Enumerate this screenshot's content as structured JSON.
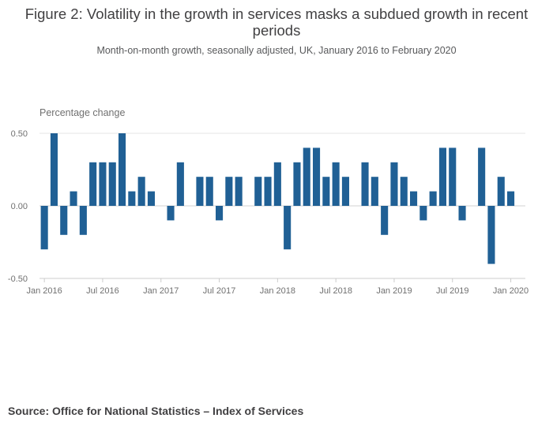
{
  "title": "Figure 2: Volatility in the growth in services masks a subdued growth in recent periods",
  "subtitle": "Month-on-month growth, seasonally adjusted, UK, January 2016 to February 2020",
  "source": "Source: Office for National Statistics – Index of Services",
  "colors": {
    "bar": "#206095",
    "grid": "#e6e6e6",
    "axis": "#cccccc"
  },
  "chart_data": {
    "type": "bar",
    "title": "Figure 2: Volatility in the growth in services masks a subdued growth in recent periods",
    "ylabel": "Percentage change",
    "xlabel": "",
    "ylim": [
      -0.5,
      0.5
    ],
    "yticks": [
      "0.50",
      "0.00",
      "-0.50"
    ],
    "ytick_values": [
      0.5,
      0.0,
      -0.5
    ],
    "xtick_labels": [
      "Jan 2016",
      "Jul 2016",
      "Jan 2017",
      "Jul 2017",
      "Jan 2018",
      "Jul 2018",
      "Jan 2019",
      "Jul 2019",
      "Jan 2020"
    ],
    "xtick_indices": [
      0,
      6,
      12,
      18,
      24,
      30,
      36,
      42,
      48
    ],
    "categories": [
      "Jan 2016",
      "Feb 2016",
      "Mar 2016",
      "Apr 2016",
      "May 2016",
      "Jun 2016",
      "Jul 2016",
      "Aug 2016",
      "Sep 2016",
      "Oct 2016",
      "Nov 2016",
      "Dec 2016",
      "Jan 2017",
      "Feb 2017",
      "Mar 2017",
      "Apr 2017",
      "May 2017",
      "Jun 2017",
      "Jul 2017",
      "Aug 2017",
      "Sep 2017",
      "Oct 2017",
      "Nov 2017",
      "Dec 2017",
      "Jan 2018",
      "Feb 2018",
      "Mar 2018",
      "Apr 2018",
      "May 2018",
      "Jun 2018",
      "Jul 2018",
      "Aug 2018",
      "Sep 2018",
      "Oct 2018",
      "Nov 2018",
      "Dec 2018",
      "Jan 2019",
      "Feb 2019",
      "Mar 2019",
      "Apr 2019",
      "May 2019",
      "Jun 2019",
      "Jul 2019",
      "Aug 2019",
      "Sep 2019",
      "Oct 2019",
      "Nov 2019",
      "Dec 2019",
      "Jan 2020",
      "Feb 2020"
    ],
    "values": [
      -0.3,
      0.5,
      -0.2,
      0.1,
      -0.2,
      0.3,
      0.3,
      0.3,
      0.5,
      0.1,
      0.2,
      0.1,
      0.0,
      -0.1,
      0.3,
      0.0,
      0.2,
      0.2,
      -0.1,
      0.2,
      0.2,
      0.0,
      0.2,
      0.2,
      0.3,
      -0.3,
      0.3,
      0.4,
      0.4,
      0.2,
      0.3,
      0.2,
      0.0,
      0.3,
      0.2,
      -0.2,
      0.3,
      0.2,
      0.1,
      -0.1,
      0.1,
      0.4,
      0.4,
      -0.1,
      0.0,
      0.4,
      -0.4,
      0.2,
      0.1,
      0.0
    ]
  }
}
